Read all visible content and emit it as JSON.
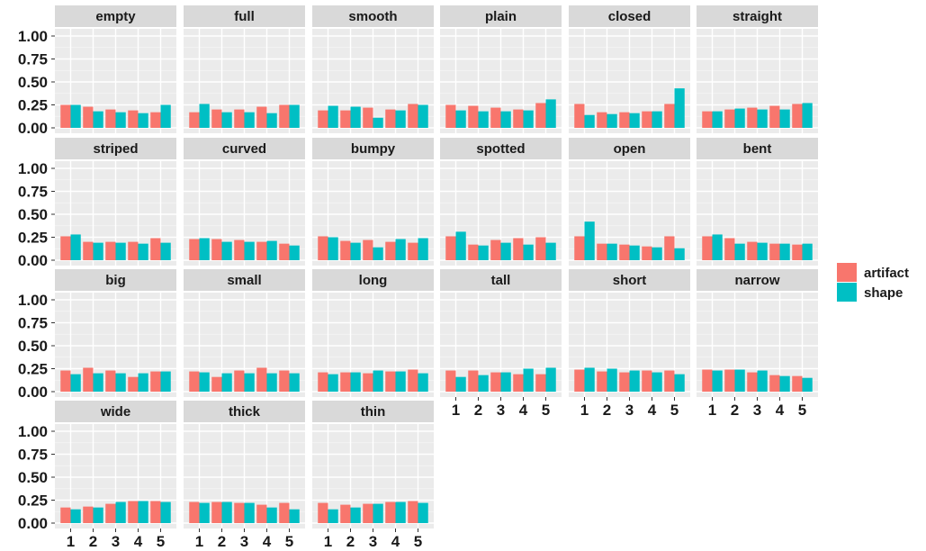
{
  "chart_data": {
    "type": "bar",
    "title": "",
    "xlabel": "",
    "ylabel": "",
    "categories": [
      "1",
      "2",
      "3",
      "4",
      "5"
    ],
    "ylim": [
      0,
      1.0
    ],
    "yticks": [
      "0.00",
      "0.25",
      "0.50",
      "0.75",
      "1.00"
    ],
    "grid": true,
    "legend_position": "right",
    "series_names": [
      "artifact",
      "shape"
    ],
    "colors": {
      "artifact": "#F8766D",
      "shape": "#00BFC4"
    },
    "panels": [
      {
        "label": "empty",
        "artifact": [
          0.25,
          0.23,
          0.2,
          0.19,
          0.17
        ],
        "shape": [
          0.25,
          0.18,
          0.17,
          0.16,
          0.25
        ]
      },
      {
        "label": "full",
        "artifact": [
          0.17,
          0.2,
          0.2,
          0.23,
          0.25
        ],
        "shape": [
          0.26,
          0.17,
          0.17,
          0.16,
          0.25
        ]
      },
      {
        "label": "smooth",
        "artifact": [
          0.19,
          0.19,
          0.22,
          0.2,
          0.26
        ],
        "shape": [
          0.24,
          0.23,
          0.11,
          0.19,
          0.25
        ]
      },
      {
        "label": "plain",
        "artifact": [
          0.25,
          0.24,
          0.22,
          0.2,
          0.27
        ],
        "shape": [
          0.19,
          0.18,
          0.18,
          0.19,
          0.31
        ]
      },
      {
        "label": "closed",
        "artifact": [
          0.26,
          0.17,
          0.17,
          0.18,
          0.26
        ],
        "shape": [
          0.14,
          0.15,
          0.16,
          0.18,
          0.43
        ]
      },
      {
        "label": "straight",
        "artifact": [
          0.18,
          0.2,
          0.22,
          0.24,
          0.26
        ],
        "shape": [
          0.18,
          0.21,
          0.2,
          0.2,
          0.27
        ]
      },
      {
        "label": "striped",
        "artifact": [
          0.26,
          0.2,
          0.2,
          0.2,
          0.24
        ],
        "shape": [
          0.28,
          0.19,
          0.19,
          0.18,
          0.19
        ]
      },
      {
        "label": "curved",
        "artifact": [
          0.23,
          0.23,
          0.22,
          0.2,
          0.18
        ],
        "shape": [
          0.24,
          0.2,
          0.2,
          0.21,
          0.16
        ]
      },
      {
        "label": "bumpy",
        "artifact": [
          0.26,
          0.21,
          0.22,
          0.2,
          0.19
        ],
        "shape": [
          0.25,
          0.19,
          0.14,
          0.23,
          0.24
        ]
      },
      {
        "label": "spotted",
        "artifact": [
          0.26,
          0.17,
          0.22,
          0.24,
          0.25
        ],
        "shape": [
          0.31,
          0.16,
          0.19,
          0.17,
          0.19
        ]
      },
      {
        "label": "open",
        "artifact": [
          0.26,
          0.18,
          0.17,
          0.15,
          0.26
        ],
        "shape": [
          0.42,
          0.18,
          0.16,
          0.14,
          0.13
        ]
      },
      {
        "label": "bent",
        "artifact": [
          0.26,
          0.24,
          0.2,
          0.18,
          0.17
        ],
        "shape": [
          0.28,
          0.18,
          0.19,
          0.18,
          0.18
        ]
      },
      {
        "label": "big",
        "artifact": [
          0.23,
          0.26,
          0.23,
          0.16,
          0.22
        ],
        "shape": [
          0.19,
          0.2,
          0.2,
          0.2,
          0.22
        ]
      },
      {
        "label": "small",
        "artifact": [
          0.22,
          0.16,
          0.23,
          0.26,
          0.23
        ],
        "shape": [
          0.21,
          0.2,
          0.2,
          0.2,
          0.2
        ]
      },
      {
        "label": "long",
        "artifact": [
          0.21,
          0.21,
          0.2,
          0.22,
          0.24
        ],
        "shape": [
          0.19,
          0.21,
          0.23,
          0.22,
          0.2
        ]
      },
      {
        "label": "tall",
        "artifact": [
          0.23,
          0.23,
          0.21,
          0.19,
          0.19
        ],
        "shape": [
          0.16,
          0.18,
          0.21,
          0.25,
          0.26
        ]
      },
      {
        "label": "short",
        "artifact": [
          0.24,
          0.22,
          0.21,
          0.23,
          0.23
        ],
        "shape": [
          0.26,
          0.25,
          0.23,
          0.21,
          0.19
        ]
      },
      {
        "label": "narrow",
        "artifact": [
          0.24,
          0.24,
          0.21,
          0.18,
          0.17
        ],
        "shape": [
          0.23,
          0.24,
          0.23,
          0.17,
          0.15
        ]
      },
      {
        "label": "wide",
        "artifact": [
          0.17,
          0.18,
          0.21,
          0.24,
          0.24
        ],
        "shape": [
          0.15,
          0.17,
          0.23,
          0.24,
          0.23
        ]
      },
      {
        "label": "thick",
        "artifact": [
          0.23,
          0.23,
          0.22,
          0.2,
          0.22
        ],
        "shape": [
          0.22,
          0.23,
          0.22,
          0.17,
          0.15
        ]
      },
      {
        "label": "thin",
        "artifact": [
          0.22,
          0.2,
          0.21,
          0.23,
          0.24
        ],
        "shape": [
          0.15,
          0.17,
          0.21,
          0.23,
          0.22
        ]
      }
    ]
  }
}
